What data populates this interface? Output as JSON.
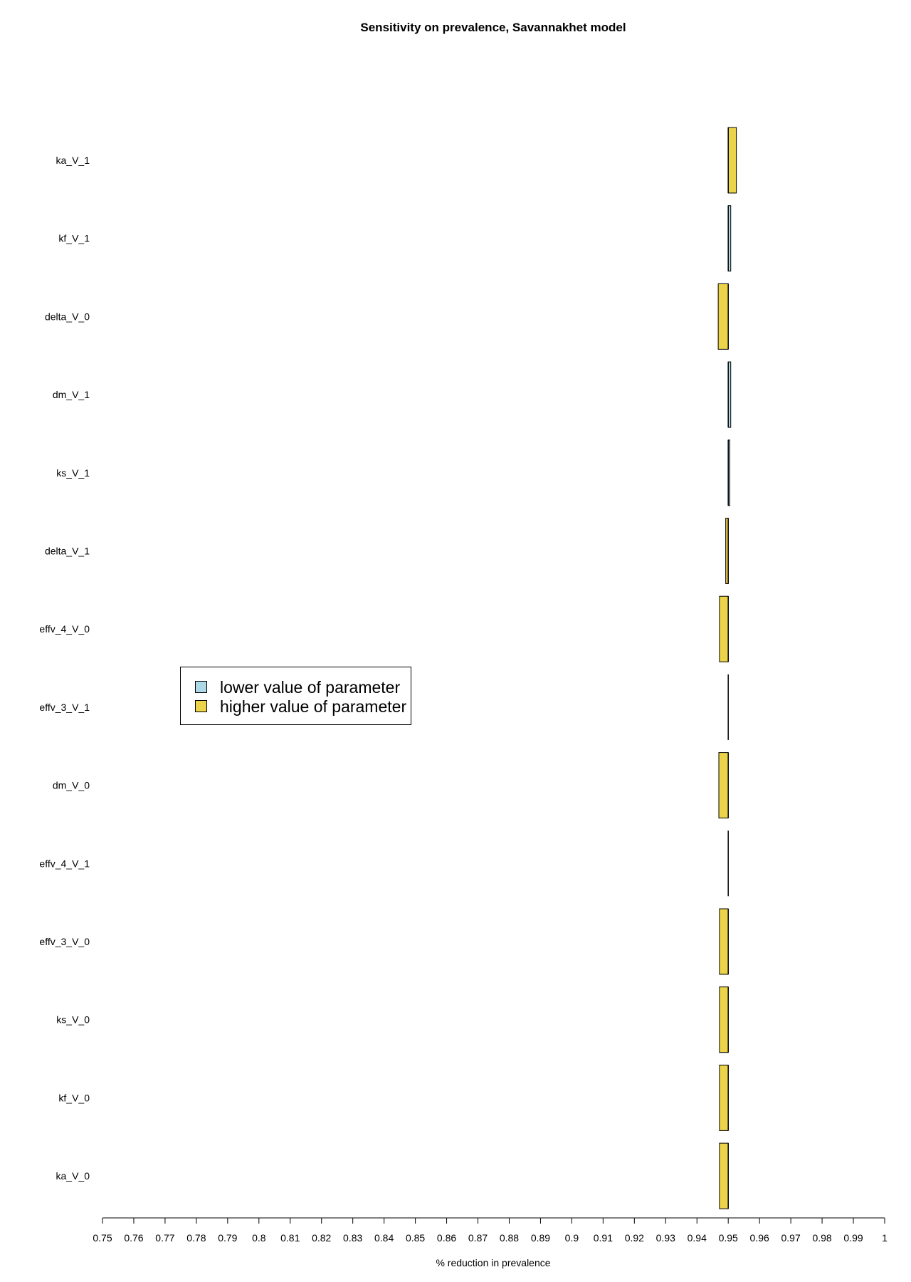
{
  "chart_data": {
    "type": "bar",
    "orientation": "horizontal",
    "title": "Sensitivity on prevalence, Savannakhet model",
    "xlabel": "% reduction in prevalence",
    "ylabel": "",
    "xlim": [
      0.75,
      1.0
    ],
    "baseline": 0.95,
    "x_ticks": [
      0.75,
      0.76,
      0.77,
      0.78,
      0.79,
      0.8,
      0.81,
      0.82,
      0.83,
      0.84,
      0.85,
      0.86,
      0.87,
      0.88,
      0.89,
      0.9,
      0.91,
      0.92,
      0.93,
      0.94,
      0.95,
      0.96,
      0.97,
      0.98,
      0.99,
      1
    ],
    "x_tick_labels": [
      "0.75",
      "0.76",
      "0.77",
      "0.78",
      "0.79",
      "0.8",
      "0.81",
      "0.82",
      "0.83",
      "0.84",
      "0.85",
      "0.86",
      "0.87",
      "0.88",
      "0.89",
      "0.9",
      "0.91",
      "0.92",
      "0.93",
      "0.94",
      "0.95",
      "0.96",
      "0.97",
      "0.98",
      "0.99",
      "1"
    ],
    "grid": false,
    "legend_position": "middle-left",
    "categories": [
      "ka_V_1",
      "kf_V_1",
      "delta_V_0",
      "dm_V_1",
      "ks_V_1",
      "delta_V_1",
      "effv_4_V_0",
      "effv_3_V_1",
      "dm_V_0",
      "effv_4_V_1",
      "effv_3_V_0",
      "ks_V_0",
      "kf_V_0",
      "ka_V_0"
    ],
    "series": [
      {
        "name": "lower value of parameter",
        "color": "#add8e6",
        "values": [
          0.95,
          0.9508,
          0.95,
          0.9508,
          0.9505,
          0.95,
          0.95,
          0.95,
          0.95,
          0.95,
          0.95,
          0.95,
          0.95,
          0.95
        ]
      },
      {
        "name": "higher value of parameter",
        "color": "#ecd44a",
        "values": [
          0.9526,
          0.95,
          0.9468,
          0.95,
          0.95,
          0.9492,
          0.9472,
          0.95,
          0.947,
          0.95,
          0.9472,
          0.9472,
          0.9472,
          0.9472
        ]
      }
    ]
  }
}
